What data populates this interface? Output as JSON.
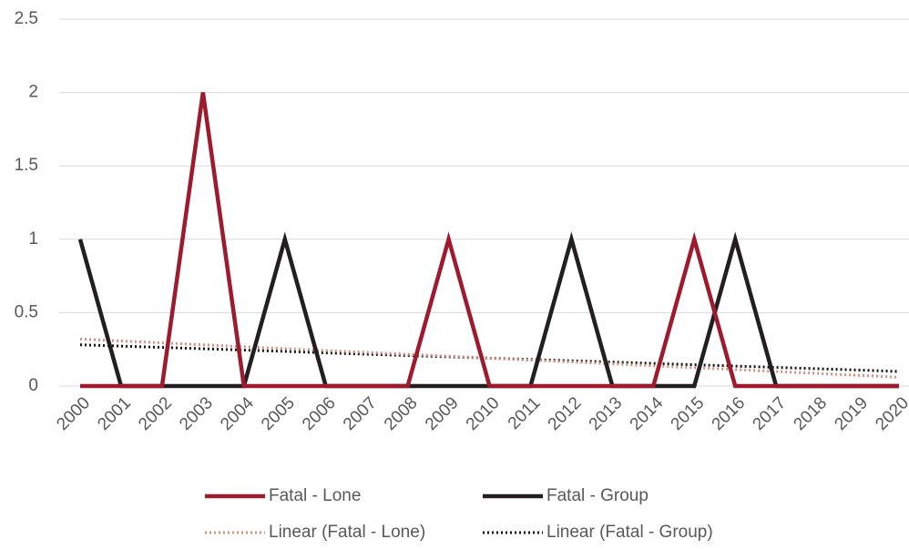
{
  "chart_data": {
    "type": "line",
    "categories": [
      "2000",
      "2001",
      "2002",
      "2003",
      "2004",
      "2005",
      "2006",
      "2007",
      "2008",
      "2009",
      "2010",
      "2011",
      "2012",
      "2013",
      "2014",
      "2015",
      "2016",
      "2017",
      "2018",
      "2019",
      "2020"
    ],
    "series": [
      {
        "name": "Fatal - Lone",
        "color": "#9e1b2f",
        "dash": "solid",
        "values": [
          0,
          0,
          0,
          2,
          0,
          0,
          0,
          0,
          0,
          1,
          0,
          0,
          0,
          0,
          0,
          1,
          0,
          0,
          0,
          0,
          0
        ]
      },
      {
        "name": "Fatal - Group",
        "color": "#231f20",
        "dash": "solid",
        "values": [
          1,
          0,
          0,
          0,
          0,
          1,
          0,
          0,
          0,
          0,
          0,
          0,
          1,
          0,
          0,
          0,
          1,
          0,
          0,
          0,
          0
        ]
      },
      {
        "name": "Linear (Fatal - Lone)",
        "color": "#d0907f",
        "dash": "dotted",
        "values": [
          0.32,
          0.307,
          0.294,
          0.281,
          0.268,
          0.255,
          0.242,
          0.229,
          0.216,
          0.203,
          0.19,
          0.177,
          0.164,
          0.151,
          0.138,
          0.125,
          0.112,
          0.099,
          0.086,
          0.073,
          0.06
        ]
      },
      {
        "name": "Linear (Fatal - Group)",
        "color": "#111111",
        "dash": "dotted",
        "values": [
          0.281,
          0.272,
          0.263,
          0.254,
          0.245,
          0.236,
          0.226,
          0.217,
          0.208,
          0.199,
          0.19,
          0.181,
          0.172,
          0.163,
          0.154,
          0.145,
          0.136,
          0.127,
          0.118,
          0.109,
          0.099
        ]
      }
    ],
    "ylim": [
      0,
      2.5
    ],
    "yticks": [
      0,
      0.5,
      1,
      1.5,
      2,
      2.5
    ],
    "grid": true,
    "legend": "bottom"
  }
}
